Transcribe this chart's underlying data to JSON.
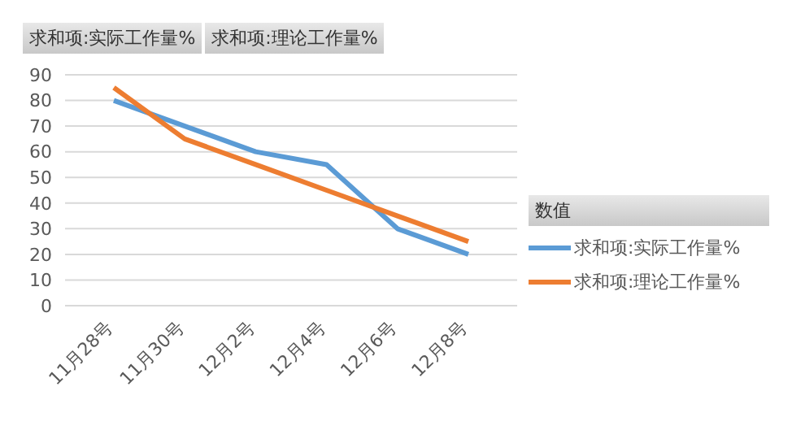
{
  "chart_data": {
    "type": "line",
    "categories": [
      "11月28号",
      "11月30号",
      "12月2号",
      "12月4号",
      "12月6号",
      "12月8号"
    ],
    "series": [
      {
        "name": "求和项:实际工作量%",
        "color": "#5b9bd5",
        "values": [
          80,
          70,
          60,
          55,
          30,
          20
        ]
      },
      {
        "name": "求和项:理论工作量%",
        "color": "#ed7d31",
        "values": [
          85,
          65,
          55,
          45,
          35,
          25
        ]
      }
    ],
    "ylim": [
      0,
      90
    ],
    "yticks": [
      0,
      10,
      20,
      30,
      40,
      50,
      60,
      70,
      80,
      90
    ],
    "grid": "y",
    "legend": "right",
    "legend_title": "数值",
    "annotations": [
      "求和项:实际工作量%",
      "求和项:理论工作量%"
    ]
  }
}
